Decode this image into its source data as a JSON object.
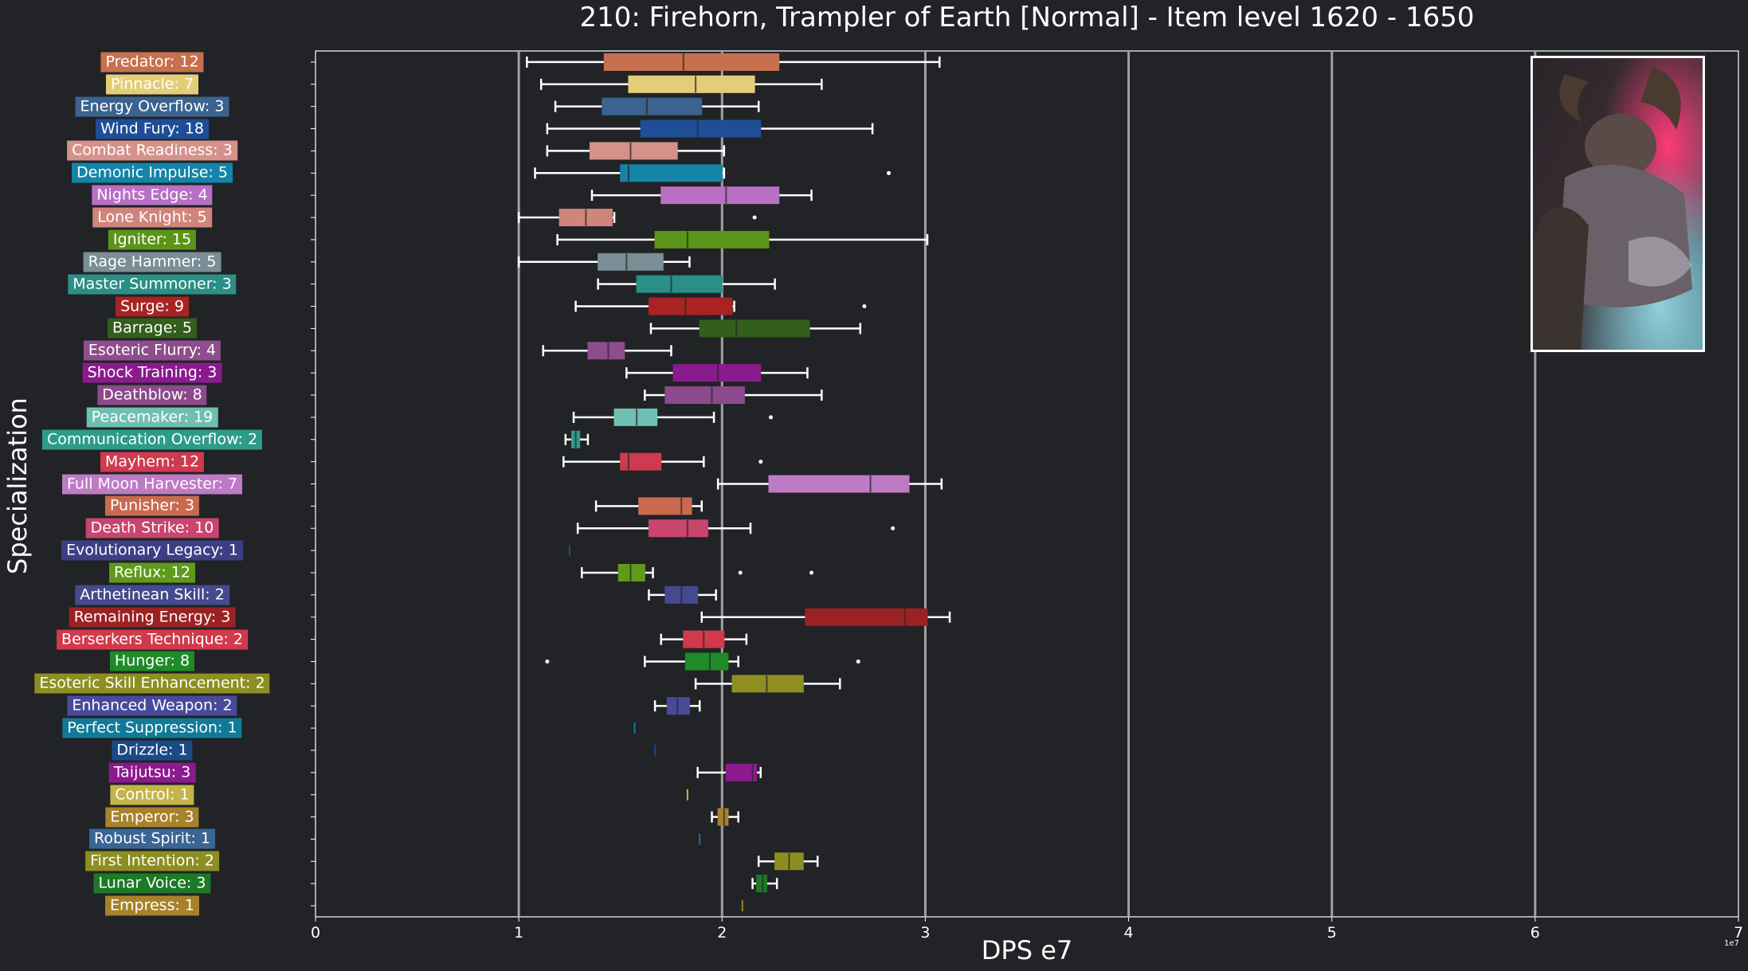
{
  "chart_data": {
    "type": "box",
    "title": "210: Firehorn, Trampler of Earth [Normal] - Item level 1620 - 1650",
    "xlabel": "DPS e7",
    "ylabel": "Specialization",
    "x_offset_label": "1e7",
    "xlim": [
      0,
      7
    ],
    "xticks": [
      "0",
      "1",
      "2",
      "3",
      "4",
      "5",
      "6",
      "7"
    ],
    "grid": "vertical lines at x = 1, 2, 3, 4, 5, 6",
    "series": [
      {
        "label": "Predator: 12",
        "color": "#c8704e",
        "min": 1.04,
        "q1": 1.42,
        "median": 1.81,
        "q3": 2.28,
        "max": 3.07,
        "outliers": []
      },
      {
        "label": "Pinnacle: 7",
        "color": "#e4cd78",
        "min": 1.11,
        "q1": 1.54,
        "median": 1.87,
        "q3": 2.16,
        "max": 2.49,
        "outliers": []
      },
      {
        "label": "Energy Overflow: 3",
        "color": "#3a6390",
        "min": 1.18,
        "q1": 1.41,
        "median": 1.63,
        "q3": 1.9,
        "max": 2.18,
        "outliers": []
      },
      {
        "label": "Wind Fury: 18",
        "color": "#1f4e97",
        "min": 1.14,
        "q1": 1.6,
        "median": 1.88,
        "q3": 2.19,
        "max": 2.74,
        "outliers": []
      },
      {
        "label": "Combat Readiness: 3",
        "color": "#d4928a",
        "min": 1.14,
        "q1": 1.35,
        "median": 1.55,
        "q3": 1.78,
        "max": 2.01,
        "outliers": []
      },
      {
        "label": "Demonic Impulse: 5",
        "color": "#1485a8",
        "min": 1.08,
        "q1": 1.5,
        "median": 1.54,
        "q3": 2.0,
        "max": 2.01,
        "outliers": [
          2.82
        ]
      },
      {
        "label": "Nights Edge: 4",
        "color": "#b96fc4",
        "min": 1.36,
        "q1": 1.7,
        "median": 2.02,
        "q3": 2.28,
        "max": 2.44,
        "outliers": []
      },
      {
        "label": "Lone Knight: 5",
        "color": "#d0857c",
        "min": 1.0,
        "q1": 1.2,
        "median": 1.33,
        "q3": 1.46,
        "max": 1.47,
        "outliers": [
          2.16
        ]
      },
      {
        "label": "Igniter: 15",
        "color": "#5b9418",
        "min": 1.19,
        "q1": 1.67,
        "median": 1.83,
        "q3": 2.23,
        "max": 3.01,
        "outliers": []
      },
      {
        "label": "Rage Hammer: 5",
        "color": "#7a8e96",
        "min": 1.0,
        "q1": 1.39,
        "median": 1.53,
        "q3": 1.71,
        "max": 1.84,
        "outliers": []
      },
      {
        "label": "Master Summoner: 3",
        "color": "#2a8f86",
        "min": 1.39,
        "q1": 1.58,
        "median": 1.75,
        "q3": 2.0,
        "max": 2.26,
        "outliers": []
      },
      {
        "label": "Surge: 9",
        "color": "#a82322",
        "min": 1.28,
        "q1": 1.64,
        "median": 1.82,
        "q3": 2.05,
        "max": 2.06,
        "outliers": [
          2.7
        ]
      },
      {
        "label": "Barrage: 5",
        "color": "#335e1c",
        "min": 1.65,
        "q1": 1.89,
        "median": 2.07,
        "q3": 2.43,
        "max": 2.68,
        "outliers": []
      },
      {
        "label": "Esoteric Flurry: 4",
        "color": "#8e4d8c",
        "min": 1.12,
        "q1": 1.34,
        "median": 1.44,
        "q3": 1.52,
        "max": 1.75,
        "outliers": []
      },
      {
        "label": "Shock Training: 3",
        "color": "#8a1b8e",
        "min": 1.53,
        "q1": 1.76,
        "median": 1.98,
        "q3": 2.19,
        "max": 2.42,
        "outliers": []
      },
      {
        "label": "Deathblow: 8",
        "color": "#8c4a8c",
        "min": 1.62,
        "q1": 1.72,
        "median": 1.95,
        "q3": 2.11,
        "max": 2.49,
        "outliers": []
      },
      {
        "label": "Peacemaker: 19",
        "color": "#6fbfb2",
        "min": 1.27,
        "q1": 1.47,
        "median": 1.58,
        "q3": 1.68,
        "max": 1.96,
        "outliers": [
          2.24
        ]
      },
      {
        "label": "Communication Overflow: 2",
        "color": "#2c9b8a",
        "min": 1.23,
        "q1": 1.26,
        "median": 1.28,
        "q3": 1.3,
        "max": 1.34,
        "outliers": []
      },
      {
        "label": "Mayhem: 12",
        "color": "#cf3a4f",
        "min": 1.22,
        "q1": 1.5,
        "median": 1.54,
        "q3": 1.7,
        "max": 1.91,
        "outliers": [
          2.19
        ]
      },
      {
        "label": "Full Moon Harvester: 7",
        "color": "#bf7ac6",
        "min": 1.98,
        "q1": 2.23,
        "median": 2.73,
        "q3": 2.92,
        "max": 3.08,
        "outliers": []
      },
      {
        "label": "Punisher: 3",
        "color": "#c96a4e",
        "min": 1.38,
        "q1": 1.59,
        "median": 1.8,
        "q3": 1.85,
        "max": 1.9,
        "outliers": []
      },
      {
        "label": "Death Strike: 10",
        "color": "#c9456e",
        "min": 1.29,
        "q1": 1.64,
        "median": 1.83,
        "q3": 1.93,
        "max": 2.14,
        "outliers": [
          2.84
        ]
      },
      {
        "label": "Evolutionary Legacy: 1",
        "color": "#3d3f86",
        "min": 1.25,
        "q1": 1.25,
        "median": 1.25,
        "q3": 1.25,
        "max": 1.25,
        "outliers": []
      },
      {
        "label": "Reflux: 12",
        "color": "#5f9a1b",
        "min": 1.31,
        "q1": 1.49,
        "median": 1.55,
        "q3": 1.62,
        "max": 1.66,
        "outliers": [
          2.09,
          2.44
        ]
      },
      {
        "label": "Arthetinean Skill: 2",
        "color": "#434a8e",
        "min": 1.64,
        "q1": 1.72,
        "median": 1.8,
        "q3": 1.88,
        "max": 1.97,
        "outliers": []
      },
      {
        "label": "Remaining Energy: 3",
        "color": "#9a2222",
        "min": 1.9,
        "q1": 2.41,
        "median": 2.9,
        "q3": 3.01,
        "max": 3.12,
        "outliers": []
      },
      {
        "label": "Berserkers Technique: 2",
        "color": "#d23a4c",
        "min": 1.7,
        "q1": 1.81,
        "median": 1.91,
        "q3": 2.01,
        "max": 2.12,
        "outliers": []
      },
      {
        "label": "Hunger: 8",
        "color": "#1f8a28",
        "min": 1.62,
        "q1": 1.82,
        "median": 1.94,
        "q3": 2.03,
        "max": 2.08,
        "outliers": [
          1.14,
          2.67
        ]
      },
      {
        "label": "Esoteric Skill Enhancement: 2",
        "color": "#8e8e22",
        "min": 1.87,
        "q1": 2.05,
        "median": 2.22,
        "q3": 2.4,
        "max": 2.58,
        "outliers": []
      },
      {
        "label": "Enhanced Weapon: 2",
        "color": "#4a4a9a",
        "min": 1.67,
        "q1": 1.73,
        "median": 1.78,
        "q3": 1.84,
        "max": 1.89,
        "outliers": []
      },
      {
        "label": "Perfect Suppression: 1",
        "color": "#117a98",
        "min": 1.57,
        "q1": 1.57,
        "median": 1.57,
        "q3": 1.57,
        "max": 1.57,
        "outliers": []
      },
      {
        "label": "Drizzle: 1",
        "color": "#1a4a86",
        "min": 1.67,
        "q1": 1.67,
        "median": 1.67,
        "q3": 1.67,
        "max": 1.67,
        "outliers": []
      },
      {
        "label": "Taijutsu: 3",
        "color": "#8c1a8e",
        "min": 1.88,
        "q1": 2.02,
        "median": 2.15,
        "q3": 2.17,
        "max": 2.19,
        "outliers": []
      },
      {
        "label": "Control: 1",
        "color": "#c4b44a",
        "min": 1.83,
        "q1": 1.83,
        "median": 1.83,
        "q3": 1.83,
        "max": 1.83,
        "outliers": []
      },
      {
        "label": "Emperor: 3",
        "color": "#a8822a",
        "min": 1.95,
        "q1": 1.98,
        "median": 2.01,
        "q3": 2.03,
        "max": 2.08,
        "outliers": []
      },
      {
        "label": "Robust Spirit: 1",
        "color": "#3a6594",
        "min": 1.89,
        "q1": 1.89,
        "median": 1.89,
        "q3": 1.89,
        "max": 1.89,
        "outliers": []
      },
      {
        "label": "First Intention: 2",
        "color": "#8c8e22",
        "min": 2.18,
        "q1": 2.26,
        "median": 2.33,
        "q3": 2.4,
        "max": 2.47,
        "outliers": []
      },
      {
        "label": "Lunar Voice: 3",
        "color": "#1c7a26",
        "min": 2.15,
        "q1": 2.17,
        "median": 2.2,
        "q3": 2.22,
        "max": 2.27,
        "outliers": []
      },
      {
        "label": "Empress: 1",
        "color": "#a8822a",
        "min": 2.1,
        "q1": 2.1,
        "median": 2.1,
        "q3": 2.1,
        "max": 2.1,
        "outliers": []
      }
    ]
  },
  "colors": {
    "background": "#212326",
    "grid": "#a0a0a0",
    "whisker": "#ffffff",
    "portrait_border": "#ffffff"
  },
  "portrait": {
    "icon": "boss-portrait-image"
  }
}
